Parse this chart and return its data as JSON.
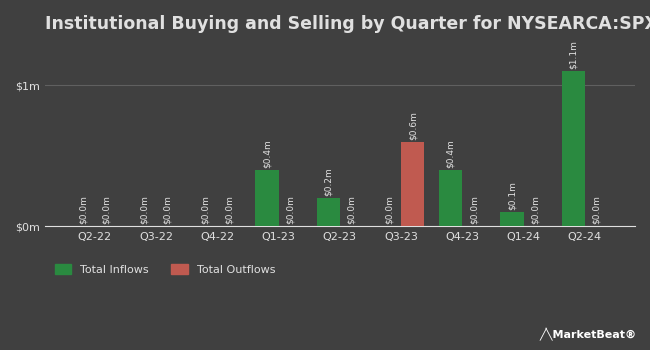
{
  "title": "Institutional Buying and Selling by Quarter for NYSEARCA:SPXE",
  "quarters": [
    "Q2-22",
    "Q3-22",
    "Q4-22",
    "Q1-23",
    "Q2-23",
    "Q3-23",
    "Q4-23",
    "Q1-24",
    "Q2-24"
  ],
  "inflows": [
    0.0,
    0.0,
    0.0,
    0.4,
    0.2,
    0.0,
    0.4,
    0.1,
    1.1
  ],
  "outflows": [
    0.0,
    0.0,
    0.0,
    0.0,
    0.0,
    0.6,
    0.0,
    0.0,
    0.0
  ],
  "inflow_labels": [
    "$0.0m",
    "$0.0m",
    "$0.0m",
    "$0.4m",
    "$0.2m",
    "$0.0m",
    "$0.4m",
    "$0.1m",
    "$1.1m"
  ],
  "outflow_labels": [
    "$0.0m",
    "$0.0m",
    "$0.0m",
    "$0.0m",
    "$0.0m",
    "$0.6m",
    "$0.0m",
    "$0.0m",
    "$0.0m"
  ],
  "inflow_color": "#2a8a40",
  "outflow_color": "#c05a50",
  "background_color": "#404040",
  "text_color": "#e0e0e0",
  "grid_color": "#606060",
  "ylim_max": 1.3,
  "ytick_vals": [
    0.0,
    1.0
  ],
  "ytick_labels": [
    "$0m",
    "$1m"
  ],
  "bar_width": 0.38,
  "title_fontsize": 12.5,
  "label_fontsize": 6.5,
  "tick_fontsize": 8,
  "legend_fontsize": 8
}
